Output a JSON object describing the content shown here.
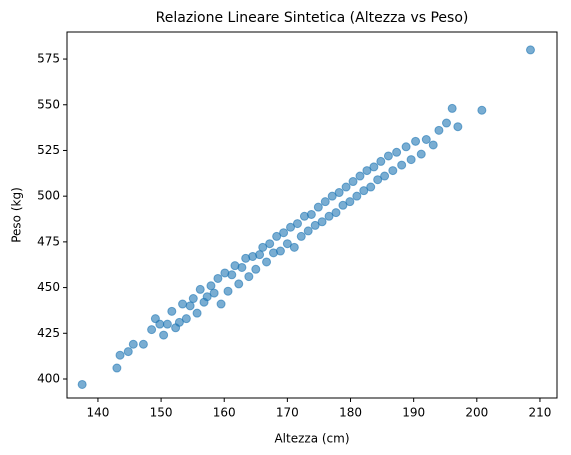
{
  "chart_data": {
    "type": "scatter",
    "title": "Relazione Lineare Sintetica (Altezza vs Peso)",
    "xlabel": "Altezza (cm)",
    "ylabel": "Peso (kg)",
    "color": "#1f77b4",
    "alpha": 0.6,
    "xlim": [
      135.1,
      212.7
    ],
    "ylim": [
      389.6,
      589.8
    ],
    "xticks": [
      140,
      150,
      160,
      170,
      180,
      190,
      200,
      210
    ],
    "yticks": [
      400,
      425,
      450,
      475,
      500,
      525,
      550,
      575
    ],
    "grid": false,
    "x": [
      137.5,
      143.0,
      143.5,
      144.8,
      145.6,
      147.2,
      148.5,
      149.1,
      149.8,
      150.4,
      151.0,
      151.7,
      152.3,
      152.9,
      153.4,
      154.0,
      154.6,
      155.1,
      155.7,
      156.2,
      156.8,
      157.3,
      157.9,
      158.4,
      159.0,
      159.5,
      160.1,
      160.6,
      161.2,
      161.7,
      162.3,
      162.8,
      163.4,
      163.9,
      164.5,
      165.0,
      165.6,
      166.1,
      166.7,
      167.2,
      167.8,
      168.3,
      168.9,
      169.4,
      170.0,
      170.5,
      171.1,
      171.6,
      172.2,
      172.7,
      173.3,
      173.8,
      174.4,
      174.9,
      175.5,
      176.0,
      176.6,
      177.1,
      177.7,
      178.2,
      178.8,
      179.3,
      179.9,
      180.4,
      181.0,
      181.5,
      182.1,
      182.6,
      183.2,
      183.7,
      184.3,
      184.8,
      185.4,
      186.0,
      186.7,
      187.3,
      188.1,
      188.8,
      189.6,
      190.3,
      191.2,
      192.0,
      193.1,
      194.0,
      195.2,
      196.1,
      197.0,
      200.8,
      208.5
    ],
    "values": [
      397,
      406,
      413,
      415,
      419,
      419,
      427,
      433,
      430,
      424,
      430,
      437,
      428,
      431,
      441,
      433,
      440,
      444,
      436,
      449,
      442,
      445,
      451,
      447,
      455,
      441,
      458,
      448,
      457,
      462,
      452,
      461,
      466,
      456,
      467,
      460,
      468,
      472,
      464,
      474,
      469,
      478,
      470,
      480,
      474,
      483,
      472,
      485,
      478,
      489,
      481,
      490,
      484,
      494,
      486,
      497,
      489,
      500,
      491,
      502,
      495,
      505,
      497,
      508,
      500,
      511,
      503,
      514,
      505,
      516,
      509,
      519,
      511,
      522,
      514,
      524,
      517,
      527,
      520,
      530,
      523,
      531,
      528,
      536,
      540,
      548,
      538,
      547,
      580
    ]
  }
}
